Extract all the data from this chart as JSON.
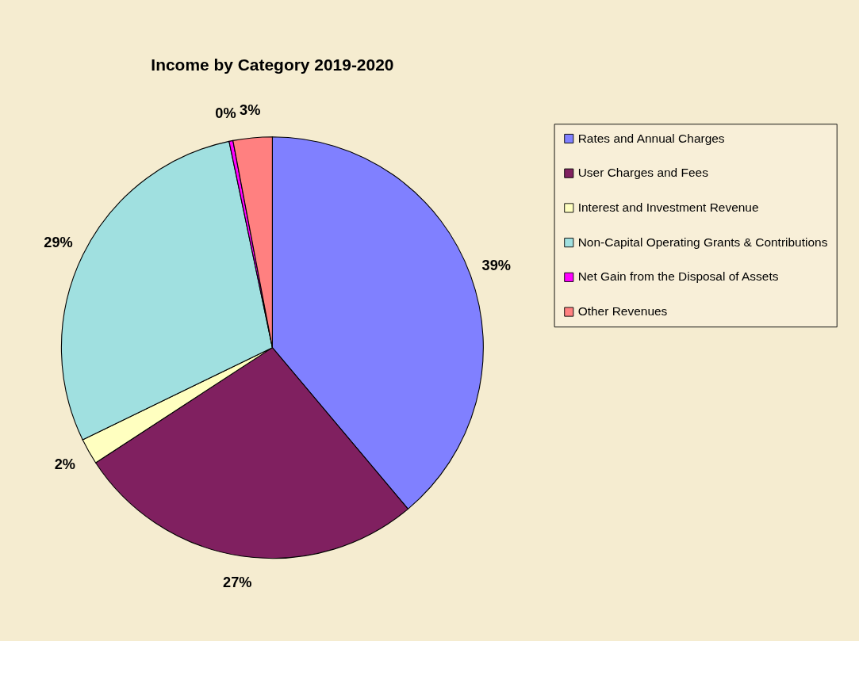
{
  "chart_data": {
    "type": "pie",
    "title": "Income by Category 2019-2020",
    "categories": [
      "Rates and Annual Charges",
      "User Charges and Fees",
      "Interest and Investment Revenue",
      "Non-Capital Operating Grants & Contributions",
      "Net Gain from the Disposal of Assets",
      "Other Revenues"
    ],
    "values": [
      39,
      27,
      2,
      29,
      0.3,
      3
    ],
    "value_labels": [
      "39%",
      "27%",
      "2%",
      "29%",
      "0%",
      "3%"
    ],
    "colors": [
      "#8080ff",
      "#802060",
      "#ffffc0",
      "#a0e0e0",
      "#ff00ff",
      "#ff8080"
    ],
    "legend": "right"
  }
}
